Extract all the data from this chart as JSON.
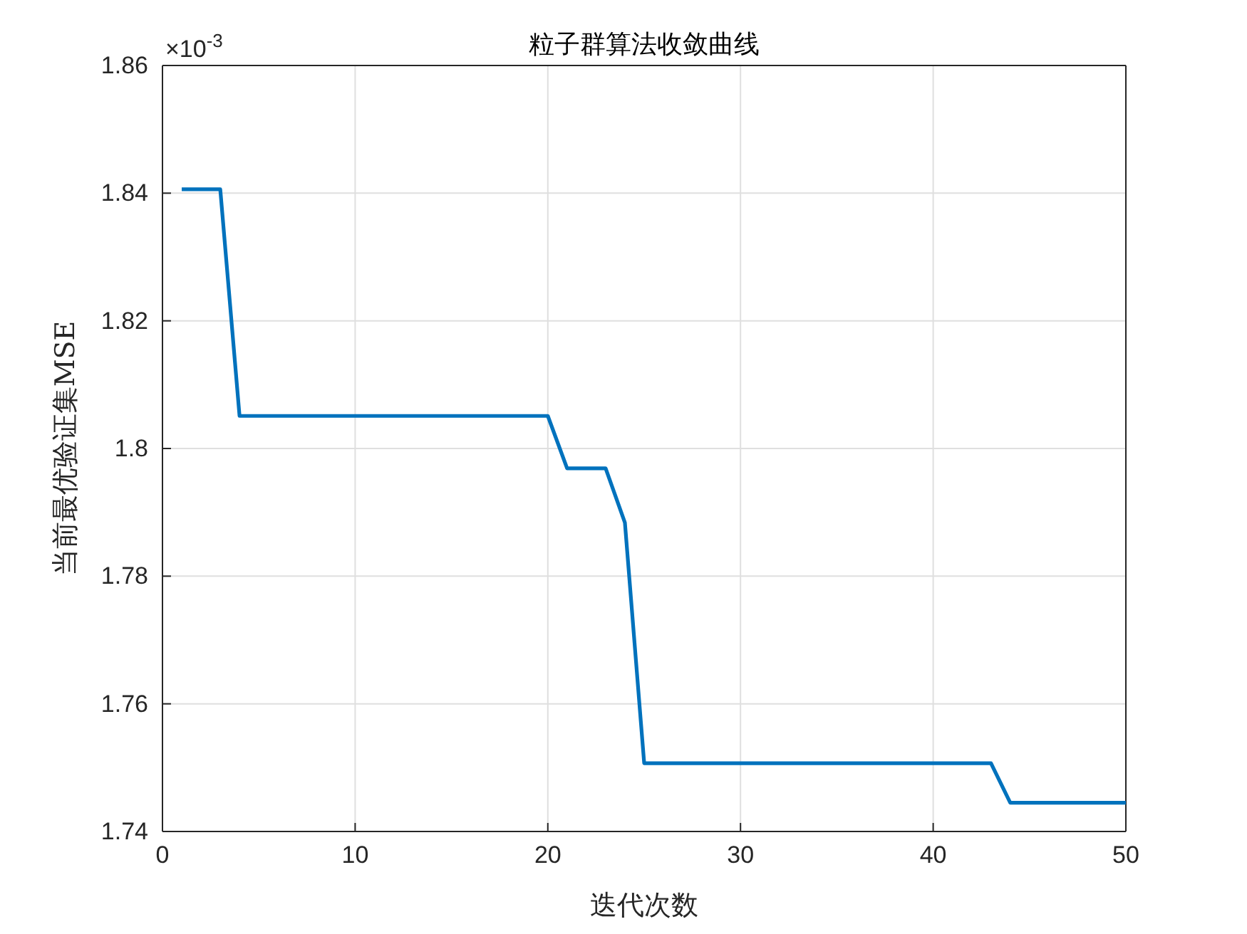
{
  "chart_data": {
    "type": "line",
    "title": "粒子群算法收敛曲线",
    "xlabel": "迭代次数",
    "ylabel": "当前最优验证集MSE",
    "annotations": [
      "×10$^{-3}$"
    ],
    "x": [
      1,
      3,
      4,
      20,
      21,
      23,
      24,
      25,
      43,
      44,
      50
    ],
    "series": [
      {
        "color": "#0072bd",
        "values": [
          1.8406,
          1.8406,
          1.8051,
          1.8051,
          1.7969,
          1.7969,
          1.7884,
          1.7507,
          1.7507,
          1.7445,
          1.7445
        ]
      }
    ],
    "xlim": [
      0,
      50
    ],
    "xticks": [
      0,
      10,
      20,
      30,
      40,
      50
    ],
    "ylim": [
      1.74,
      1.86
    ],
    "yticks": [
      1.74,
      1.76,
      1.78,
      {
        "value": 1.8,
        "label": "1.8"
      },
      1.82,
      1.84,
      1.86
    ],
    "grid": true,
    "marker": "none",
    "line_style": "solid"
  }
}
